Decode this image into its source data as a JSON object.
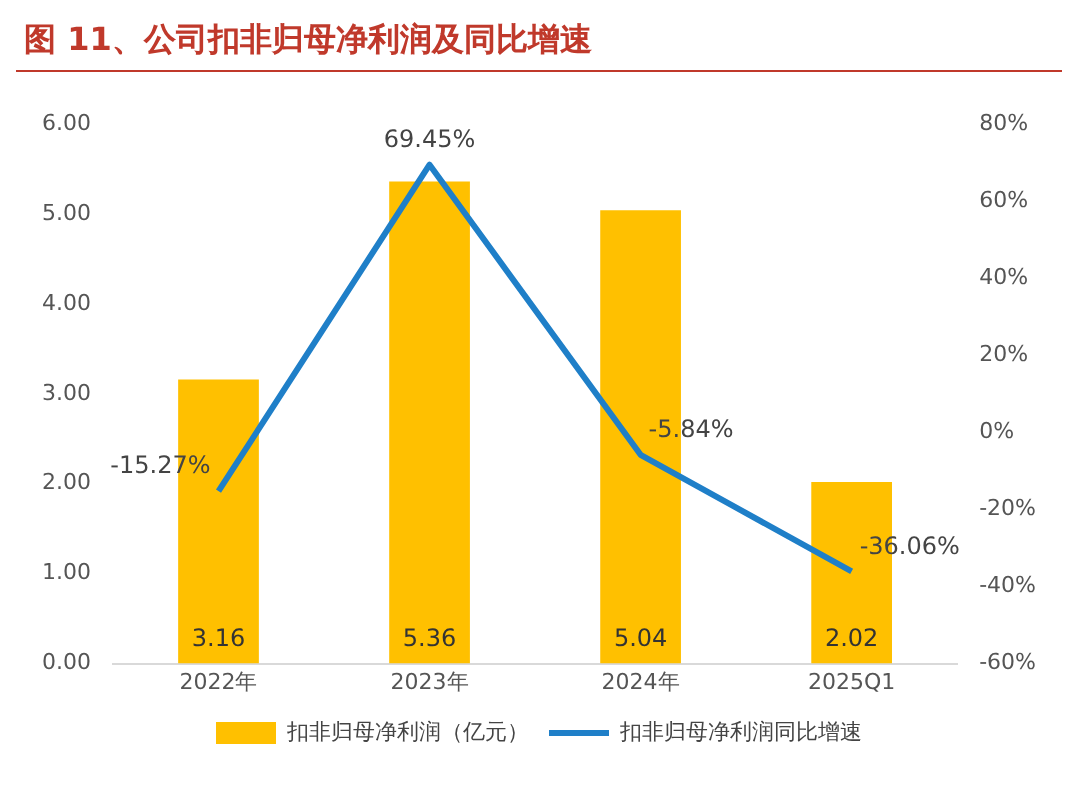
{
  "chart_data": {
    "type": "bar",
    "title": "图 11、公司扣非归母净利润及同比增速",
    "categories": [
      "2022年",
      "2023年",
      "2024年",
      "2025Q1"
    ],
    "series": [
      {
        "name": "扣非归母净利润（亿元）",
        "color": "#ffc000",
        "values": [
          3.16,
          5.36,
          5.04,
          2.02
        ],
        "value_labels": [
          "3.16",
          "5.36",
          "5.04",
          "2.02"
        ]
      },
      {
        "name": "扣非归母净利润同比增速",
        "type": "line",
        "axis": "y2",
        "color": "#1f7fc8",
        "values": [
          -15.27,
          69.45,
          -5.84,
          -36.06
        ],
        "value_labels": [
          "-15.27%",
          "69.45%",
          "-5.84%",
          "-36.06%"
        ]
      }
    ],
    "ylim": [
      0,
      6
    ],
    "yticks": [
      {
        "value": 0,
        "label": "0.00"
      },
      {
        "value": 1,
        "label": "1.00"
      },
      {
        "value": 2,
        "label": "2.00"
      },
      {
        "value": 3,
        "label": "3.00"
      },
      {
        "value": 4,
        "label": "4.00"
      },
      {
        "value": 5,
        "label": "5.00"
      },
      {
        "value": 6,
        "label": "6.00"
      }
    ],
    "y2lim": [
      -60,
      80
    ],
    "y2ticks": [
      {
        "value": -60,
        "label": "-60%"
      },
      {
        "value": -40,
        "label": "-40%"
      },
      {
        "value": -20,
        "label": "-20%"
      },
      {
        "value": 0,
        "label": "0%"
      },
      {
        "value": 20,
        "label": "20%"
      },
      {
        "value": 40,
        "label": "40%"
      },
      {
        "value": 60,
        "label": "60%"
      },
      {
        "value": 80,
        "label": "80%"
      }
    ],
    "grid": false,
    "legend": "bottom",
    "marker": "none"
  }
}
